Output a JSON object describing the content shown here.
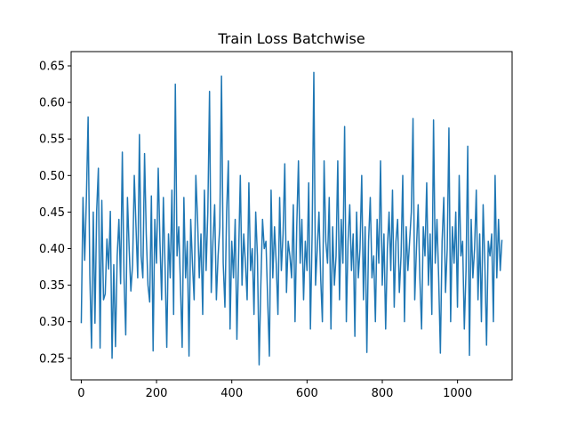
{
  "chart_data": {
    "type": "line",
    "title": "Train Loss Batchwise",
    "xlabel": "",
    "ylabel": "",
    "xlim": [
      -27,
      1145
    ],
    "ylim": [
      0.2205,
      0.6695
    ],
    "xticks": [
      0,
      200,
      400,
      600,
      800,
      1000
    ],
    "xtick_labels": [
      "0",
      "200",
      "400",
      "600",
      "800",
      "1000"
    ],
    "yticks": [
      0.25,
      0.3,
      0.35,
      0.4,
      0.45,
      0.5,
      0.55,
      0.6,
      0.65
    ],
    "ytick_labels": [
      "0.25",
      "0.30",
      "0.35",
      "0.40",
      "0.45",
      "0.50",
      "0.55",
      "0.60",
      "0.65"
    ],
    "grid": false,
    "legend": "none",
    "series": [
      {
        "color": "#1f77b4",
        "n_points": 1119,
        "x_start": 0,
        "x_step": 1,
        "y_min": 0.241,
        "y_max": 0.641,
        "y_mean": 0.4,
        "values": [
          0.298,
          0.47,
          0.384,
          0.47,
          0.58,
          0.364,
          0.264,
          0.45,
          0.298,
          0.452,
          0.51,
          0.264,
          0.466,
          0.33,
          0.338,
          0.413,
          0.372,
          0.451,
          0.25,
          0.378,
          0.266,
          0.39,
          0.44,
          0.352,
          0.532,
          0.36,
          0.282,
          0.47,
          0.4,
          0.342,
          0.378,
          0.5,
          0.43,
          0.36,
          0.556,
          0.39,
          0.36,
          0.53,
          0.42,
          0.35,
          0.327,
          0.472,
          0.26,
          0.44,
          0.38,
          0.51,
          0.41,
          0.33,
          0.47,
          0.375,
          0.265,
          0.42,
          0.36,
          0.48,
          0.31,
          0.625,
          0.39,
          0.43,
          0.35,
          0.265,
          0.47,
          0.36,
          0.41,
          0.253,
          0.44,
          0.38,
          0.33,
          0.5,
          0.44,
          0.36,
          0.42,
          0.31,
          0.48,
          0.37,
          0.45,
          0.615,
          0.34,
          0.41,
          0.46,
          0.33,
          0.39,
          0.43,
          0.636,
          0.38,
          0.32,
          0.45,
          0.52,
          0.29,
          0.41,
          0.36,
          0.44,
          0.276,
          0.39,
          0.5,
          0.35,
          0.42,
          0.38,
          0.33,
          0.49,
          0.37,
          0.4,
          0.31,
          0.45,
          0.39,
          0.241,
          0.35,
          0.44,
          0.4,
          0.41,
          0.33,
          0.253,
          0.48,
          0.36,
          0.43,
          0.38,
          0.31,
          0.47,
          0.37,
          0.42,
          0.516,
          0.34,
          0.41,
          0.39,
          0.36,
          0.46,
          0.3,
          0.43,
          0.52,
          0.38,
          0.44,
          0.33,
          0.41,
          0.37,
          0.49,
          0.29,
          0.42,
          0.641,
          0.35,
          0.4,
          0.45,
          0.36,
          0.3,
          0.52,
          0.41,
          0.38,
          0.47,
          0.29,
          0.43,
          0.35,
          0.39,
          0.52,
          0.33,
          0.44,
          0.38,
          0.567,
          0.3,
          0.41,
          0.46,
          0.37,
          0.42,
          0.28,
          0.45,
          0.36,
          0.4,
          0.5,
          0.33,
          0.43,
          0.258,
          0.41,
          0.47,
          0.36,
          0.39,
          0.3,
          0.44,
          0.38,
          0.52,
          0.35,
          0.42,
          0.29,
          0.4,
          0.45,
          0.37,
          0.48,
          0.32,
          0.41,
          0.44,
          0.34,
          0.39,
          0.5,
          0.3,
          0.43,
          0.37,
          0.41,
          0.45,
          0.578,
          0.33,
          0.4,
          0.46,
          0.36,
          0.29,
          0.43,
          0.39,
          0.49,
          0.35,
          0.42,
          0.31,
          0.576,
          0.38,
          0.44,
          0.36,
          0.257,
          0.41,
          0.47,
          0.34,
          0.4,
          0.565,
          0.3,
          0.43,
          0.38,
          0.45,
          0.32,
          0.5,
          0.39,
          0.41,
          0.29,
          0.37,
          0.54,
          0.254,
          0.44,
          0.36,
          0.4,
          0.48,
          0.33,
          0.42,
          0.3,
          0.46,
          0.38,
          0.268,
          0.41,
          0.39,
          0.42,
          0.3,
          0.5,
          0.36,
          0.44,
          0.37,
          0.412
        ]
      }
    ]
  }
}
